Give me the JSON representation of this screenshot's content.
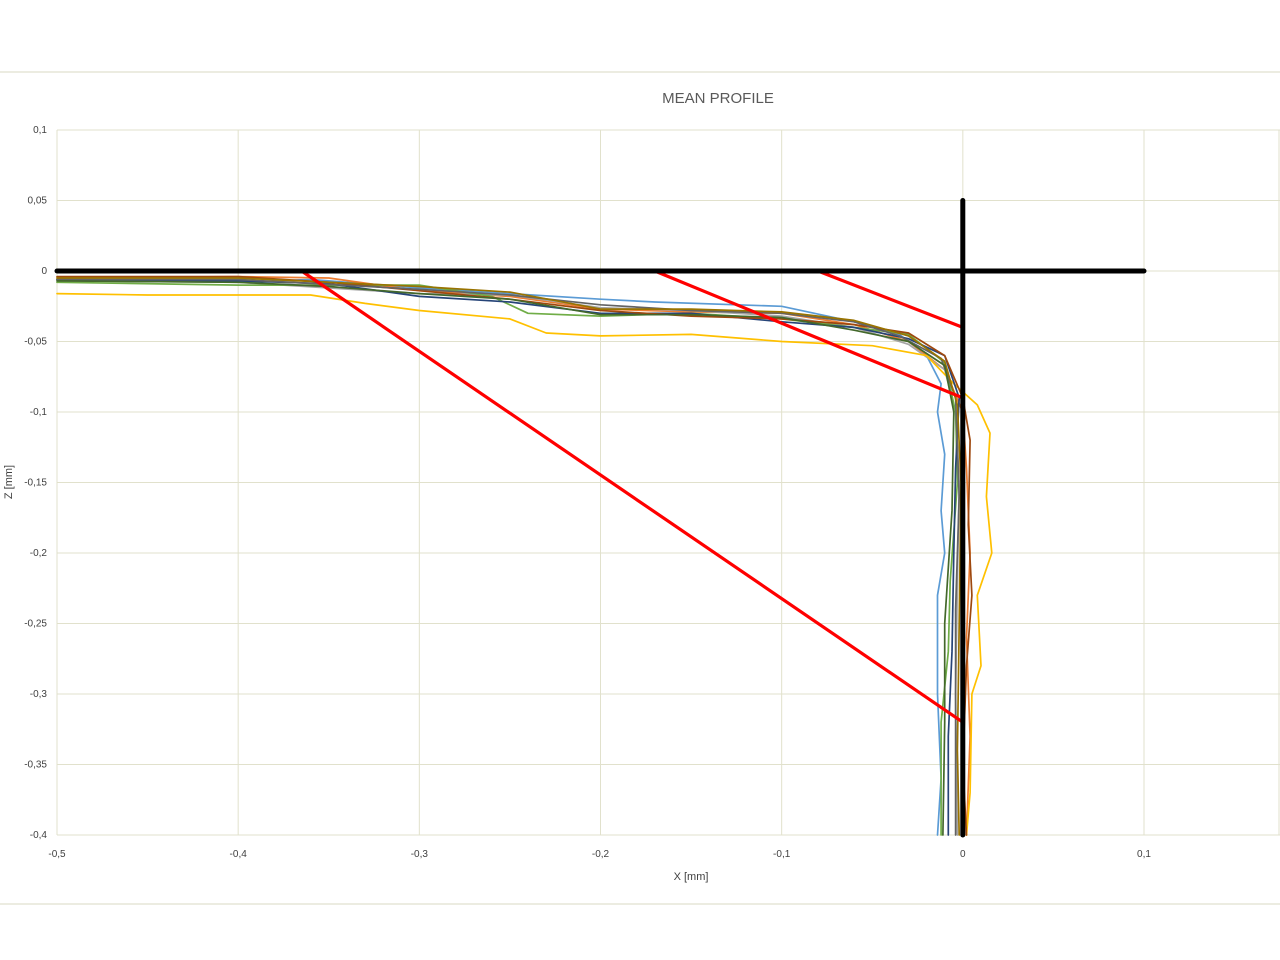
{
  "chart_data": {
    "type": "line",
    "title": "MEAN PROFILE",
    "xlabel": "X [mm]",
    "ylabel": "Z [mm]",
    "xlim": [
      -0.5,
      0.1
    ],
    "ylim": [
      -0.4,
      0.1
    ],
    "grid": true,
    "x_ticks": [
      "-0,5",
      "-0,4",
      "-0,3",
      "-0,2",
      "-0,1",
      "0",
      "0,1"
    ],
    "y_ticks": [
      "0,1",
      "0,05",
      "0",
      "-0,05",
      "-0,1",
      "-0,15",
      "-0,2",
      "-0,25",
      "-0,3",
      "-0,35",
      "-0,4"
    ],
    "series": [
      {
        "color": "#5b9bd5",
        "points": [
          [
            -0.5,
            -0.006
          ],
          [
            -0.4,
            -0.008
          ],
          [
            -0.36,
            -0.006
          ],
          [
            -0.3,
            -0.012
          ],
          [
            -0.25,
            -0.016
          ],
          [
            -0.2,
            -0.02
          ],
          [
            -0.17,
            -0.022
          ],
          [
            -0.1,
            -0.025
          ],
          [
            -0.06,
            -0.036
          ],
          [
            -0.035,
            -0.045
          ],
          [
            -0.02,
            -0.06
          ],
          [
            -0.012,
            -0.08
          ],
          [
            -0.014,
            -0.1
          ],
          [
            -0.01,
            -0.13
          ],
          [
            -0.012,
            -0.17
          ],
          [
            -0.01,
            -0.2
          ],
          [
            -0.014,
            -0.23
          ],
          [
            -0.014,
            -0.3
          ],
          [
            -0.012,
            -0.36
          ],
          [
            -0.014,
            -0.4
          ]
        ]
      },
      {
        "color": "#ed7d31",
        "points": [
          [
            -0.5,
            -0.005
          ],
          [
            -0.4,
            -0.004
          ],
          [
            -0.35,
            -0.005
          ],
          [
            -0.3,
            -0.014
          ],
          [
            -0.25,
            -0.018
          ],
          [
            -0.2,
            -0.027
          ],
          [
            -0.15,
            -0.029
          ],
          [
            -0.1,
            -0.03
          ],
          [
            -0.06,
            -0.038
          ],
          [
            -0.03,
            -0.05
          ],
          [
            -0.01,
            -0.07
          ],
          [
            0.0,
            -0.1
          ],
          [
            0.002,
            -0.14
          ],
          [
            0.004,
            -0.2
          ],
          [
            0.002,
            -0.26
          ],
          [
            0.004,
            -0.33
          ],
          [
            0.002,
            -0.4
          ]
        ]
      },
      {
        "color": "#a5a5a5",
        "points": [
          [
            -0.5,
            -0.007
          ],
          [
            -0.4,
            -0.008
          ],
          [
            -0.3,
            -0.016
          ],
          [
            -0.25,
            -0.017
          ],
          [
            -0.2,
            -0.026
          ],
          [
            -0.15,
            -0.028
          ],
          [
            -0.1,
            -0.032
          ],
          [
            -0.06,
            -0.04
          ],
          [
            -0.03,
            -0.052
          ],
          [
            -0.01,
            -0.07
          ],
          [
            -0.004,
            -0.1
          ],
          [
            -0.002,
            -0.15
          ],
          [
            -0.003,
            -0.22
          ],
          [
            -0.004,
            -0.3
          ],
          [
            -0.003,
            -0.4
          ]
        ]
      },
      {
        "color": "#ffc000",
        "points": [
          [
            -0.5,
            -0.016
          ],
          [
            -0.45,
            -0.017
          ],
          [
            -0.4,
            -0.017
          ],
          [
            -0.36,
            -0.017
          ],
          [
            -0.33,
            -0.023
          ],
          [
            -0.3,
            -0.028
          ],
          [
            -0.25,
            -0.034
          ],
          [
            -0.23,
            -0.044
          ],
          [
            -0.2,
            -0.046
          ],
          [
            -0.15,
            -0.045
          ],
          [
            -0.1,
            -0.05
          ],
          [
            -0.05,
            -0.053
          ],
          [
            -0.02,
            -0.06
          ],
          [
            -0.005,
            -0.08
          ],
          [
            0.008,
            -0.095
          ],
          [
            0.015,
            -0.115
          ],
          [
            0.013,
            -0.16
          ],
          [
            0.016,
            -0.2
          ],
          [
            0.008,
            -0.23
          ],
          [
            0.01,
            -0.28
          ],
          [
            0.005,
            -0.3
          ],
          [
            0.004,
            -0.37
          ],
          [
            0.002,
            -0.4
          ]
        ]
      },
      {
        "color": "#70ad47",
        "points": [
          [
            -0.5,
            -0.008
          ],
          [
            -0.4,
            -0.01
          ],
          [
            -0.35,
            -0.01
          ],
          [
            -0.3,
            -0.01
          ],
          [
            -0.26,
            -0.018
          ],
          [
            -0.24,
            -0.03
          ],
          [
            -0.2,
            -0.032
          ],
          [
            -0.15,
            -0.03
          ],
          [
            -0.1,
            -0.034
          ],
          [
            -0.06,
            -0.04
          ],
          [
            -0.03,
            -0.045
          ],
          [
            -0.01,
            -0.065
          ],
          [
            -0.004,
            -0.1
          ],
          [
            -0.003,
            -0.15
          ],
          [
            -0.007,
            -0.22
          ],
          [
            -0.008,
            -0.27
          ],
          [
            -0.012,
            -0.32
          ],
          [
            -0.012,
            -0.4
          ]
        ]
      },
      {
        "color": "#264478",
        "points": [
          [
            -0.5,
            -0.006
          ],
          [
            -0.4,
            -0.007
          ],
          [
            -0.35,
            -0.009
          ],
          [
            -0.3,
            -0.018
          ],
          [
            -0.25,
            -0.022
          ],
          [
            -0.2,
            -0.03
          ],
          [
            -0.15,
            -0.03
          ],
          [
            -0.1,
            -0.036
          ],
          [
            -0.06,
            -0.04
          ],
          [
            -0.03,
            -0.048
          ],
          [
            -0.01,
            -0.06
          ],
          [
            -0.002,
            -0.09
          ],
          [
            -0.004,
            -0.14
          ],
          [
            -0.005,
            -0.2
          ],
          [
            -0.006,
            -0.27
          ],
          [
            -0.008,
            -0.33
          ],
          [
            -0.008,
            -0.4
          ]
        ]
      },
      {
        "color": "#9e480e",
        "points": [
          [
            -0.5,
            -0.004
          ],
          [
            -0.4,
            -0.004
          ],
          [
            -0.35,
            -0.008
          ],
          [
            -0.3,
            -0.014
          ],
          [
            -0.25,
            -0.02
          ],
          [
            -0.2,
            -0.028
          ],
          [
            -0.15,
            -0.032
          ],
          [
            -0.1,
            -0.034
          ],
          [
            -0.06,
            -0.038
          ],
          [
            -0.03,
            -0.044
          ],
          [
            -0.01,
            -0.06
          ],
          [
            0.0,
            -0.09
          ],
          [
            0.004,
            -0.12
          ],
          [
            0.003,
            -0.18
          ],
          [
            0.005,
            -0.23
          ],
          [
            0.002,
            -0.28
          ],
          [
            0.0,
            -0.35
          ],
          [
            0.002,
            -0.4
          ]
        ]
      },
      {
        "color": "#636363",
        "points": [
          [
            -0.5,
            -0.006
          ],
          [
            -0.4,
            -0.006
          ],
          [
            -0.3,
            -0.013
          ],
          [
            -0.25,
            -0.017
          ],
          [
            -0.2,
            -0.024
          ],
          [
            -0.15,
            -0.028
          ],
          [
            -0.1,
            -0.03
          ],
          [
            -0.06,
            -0.036
          ],
          [
            -0.035,
            -0.046
          ],
          [
            -0.012,
            -0.062
          ],
          [
            -0.004,
            -0.09
          ],
          [
            -0.002,
            -0.16
          ],
          [
            -0.004,
            -0.24
          ],
          [
            -0.004,
            -0.32
          ],
          [
            -0.004,
            -0.4
          ]
        ]
      },
      {
        "color": "#997300",
        "points": [
          [
            -0.5,
            -0.005
          ],
          [
            -0.4,
            -0.005
          ],
          [
            -0.3,
            -0.011
          ],
          [
            -0.25,
            -0.015
          ],
          [
            -0.2,
            -0.027
          ],
          [
            -0.15,
            -0.027
          ],
          [
            -0.1,
            -0.029
          ],
          [
            -0.06,
            -0.035
          ],
          [
            -0.03,
            -0.046
          ],
          [
            -0.01,
            -0.064
          ],
          [
            -0.003,
            -0.095
          ],
          [
            -0.001,
            -0.15
          ],
          [
            -0.002,
            -0.25
          ],
          [
            -0.003,
            -0.34
          ],
          [
            -0.002,
            -0.4
          ]
        ]
      },
      {
        "color": "#43682b",
        "points": [
          [
            -0.5,
            -0.007
          ],
          [
            -0.4,
            -0.008
          ],
          [
            -0.35,
            -0.011
          ],
          [
            -0.3,
            -0.016
          ],
          [
            -0.25,
            -0.02
          ],
          [
            -0.2,
            -0.031
          ],
          [
            -0.15,
            -0.031
          ],
          [
            -0.1,
            -0.033
          ],
          [
            -0.06,
            -0.042
          ],
          [
            -0.03,
            -0.05
          ],
          [
            -0.01,
            -0.067
          ],
          [
            -0.005,
            -0.1
          ],
          [
            -0.006,
            -0.17
          ],
          [
            -0.01,
            -0.25
          ],
          [
            -0.01,
            -0.32
          ],
          [
            -0.011,
            -0.4
          ]
        ]
      }
    ],
    "reference_lines": [
      {
        "color": "#ff0000",
        "points": [
          [
            -0.365,
            0.0
          ],
          [
            0.0,
            -0.32
          ]
        ]
      },
      {
        "color": "#ff0000",
        "points": [
          [
            -0.17,
            0.0
          ],
          [
            0.0,
            -0.09
          ]
        ]
      },
      {
        "color": "#ff0000",
        "points": [
          [
            -0.08,
            0.0
          ],
          [
            0.0,
            -0.04
          ]
        ]
      },
      {
        "color": "#000000",
        "points": [
          [
            -0.5,
            0.0
          ],
          [
            0.1,
            0.0
          ]
        ]
      },
      {
        "color": "#000000",
        "points": [
          [
            0.0,
            0.05
          ],
          [
            0.0,
            -0.4
          ]
        ]
      }
    ]
  }
}
